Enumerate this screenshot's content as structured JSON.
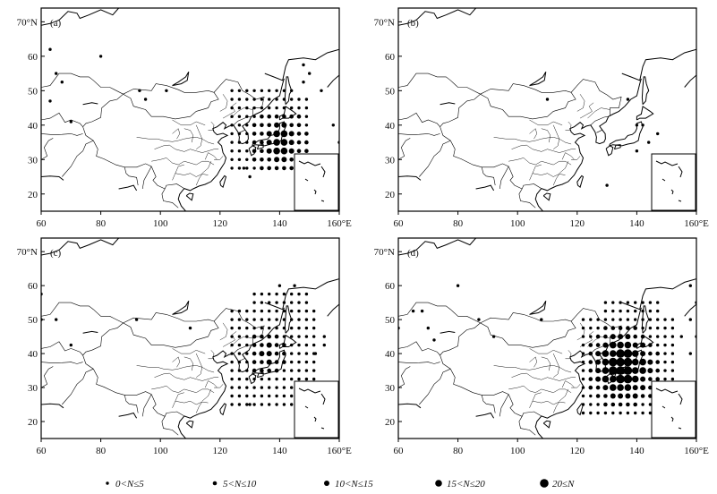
{
  "figure": {
    "panels": [
      {
        "label": "(a)"
      },
      {
        "label": "(b)"
      },
      {
        "label": "(c)"
      },
      {
        "label": "(d)"
      }
    ],
    "x_ticks": [
      "60",
      "80",
      "100",
      "120",
      "140",
      "160°E"
    ],
    "y_ticks": [
      "70°N",
      "60",
      "50",
      "40",
      "30",
      "20"
    ],
    "legend": [
      {
        "text": "0<N≤5",
        "size": 1
      },
      {
        "text": "5<N≤10",
        "size": 2
      },
      {
        "text": "10<N≤15",
        "size": 3
      },
      {
        "text": "15<N≤20",
        "size": 4
      },
      {
        "text": "20≤N",
        "size": 5
      }
    ]
  }
}
